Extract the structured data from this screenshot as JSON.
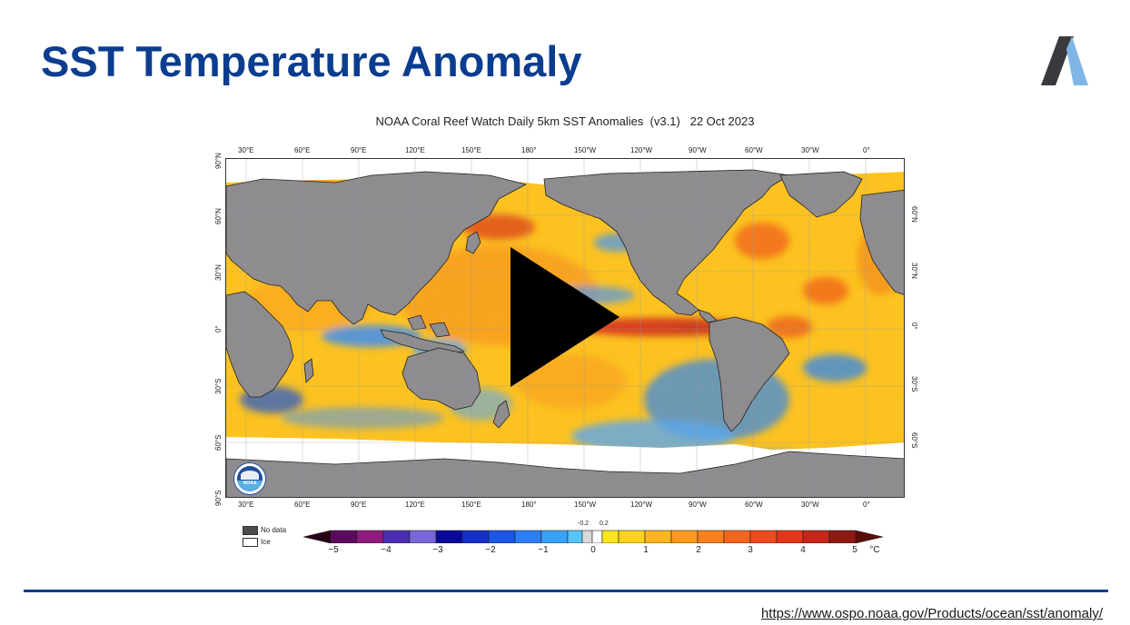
{
  "slide": {
    "title": "SST Temperature Anomaly",
    "source_url": "https://www.ospo.noaa.gov/Products/ocean/sst/anomaly/"
  },
  "figure": {
    "title": "NOAA Coral Reef Watch Daily 5km SST Anomalies  (v3.1)   22 Oct 2023",
    "lon_labels": [
      "30°E",
      "60°E",
      "90°E",
      "120°E",
      "150°E",
      "180°",
      "150°W",
      "120°W",
      "90°W",
      "60°W",
      "30°W",
      "0°"
    ],
    "lat_labels_left": [
      "90°N",
      "60°N",
      "30°N",
      "0°",
      "30°S",
      "60°S",
      "90°S"
    ],
    "lat_labels_right": [
      "60°N",
      "30°N",
      "0°",
      "30°S",
      "60°S"
    ],
    "noaa_badge": "NOAA",
    "legend": {
      "no_data": "No data",
      "ice": "Ice"
    },
    "colorbar": {
      "ticks": [
        "−5",
        "−4",
        "−3",
        "−2",
        "−1",
        "0",
        "1",
        "2",
        "3",
        "4",
        "5"
      ],
      "inner_ticks": [
        "-0.2",
        "0.2"
      ],
      "unit": "°C",
      "min": -5,
      "max": 5
    }
  },
  "colors": {
    "title_blue": "#0a3d8f",
    "land_gray": "#8e8c8f",
    "ice_white": "#ffffff",
    "no_data": "#4d4d4d"
  },
  "video": {
    "play_icon": "play-icon"
  }
}
